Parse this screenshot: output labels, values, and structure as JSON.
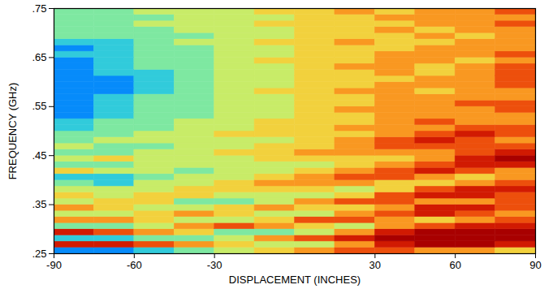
{
  "chart_data": {
    "type": "heatmap",
    "xlabel": "DISPLACEMENT (INCHES)",
    "ylabel": "FREQUENCY (GHz)",
    "xlim": [
      -90,
      90
    ],
    "ylim": [
      0.25,
      0.75
    ],
    "xticks": [
      -90,
      -60,
      -30,
      30,
      60,
      90
    ],
    "yticks": [
      {
        "value": 0.25,
        "label": ".25"
      },
      {
        "value": 0.35,
        "label": ".35"
      },
      {
        "value": 0.45,
        "label": ".45"
      },
      {
        "value": 0.55,
        "label": ".55"
      },
      {
        "value": 0.65,
        "label": ".65"
      },
      {
        "value": 0.75,
        "label": ".75"
      }
    ],
    "x_edges": [
      -90,
      -75,
      -60,
      -45,
      -30,
      -15,
      0,
      15,
      30,
      45,
      60,
      75,
      90
    ],
    "y_edges": [
      0.25,
      0.2625,
      0.275,
      0.2875,
      0.3,
      0.3125,
      0.325,
      0.3375,
      0.35,
      0.3625,
      0.375,
      0.3875,
      0.4,
      0.4125,
      0.425,
      0.4375,
      0.45,
      0.4625,
      0.475,
      0.4875,
      0.5,
      0.5125,
      0.525,
      0.5375,
      0.55,
      0.5625,
      0.575,
      0.5875,
      0.6,
      0.6125,
      0.625,
      0.6375,
      0.65,
      0.6625,
      0.675,
      0.6875,
      0.7,
      0.7125,
      0.725,
      0.7375,
      0.75
    ],
    "color_range": [
      0,
      9
    ],
    "cells": [
      [
        1,
        1,
        2,
        3,
        4,
        5,
        6,
        7,
        7,
        6,
        6,
        5
      ],
      [
        8,
        8,
        7,
        6,
        5,
        4,
        4,
        6,
        8,
        9,
        9,
        8
      ],
      [
        2,
        2,
        3,
        3,
        4,
        6,
        7,
        8,
        9,
        9,
        9,
        9
      ],
      [
        8,
        7,
        6,
        5,
        3,
        3,
        4,
        6,
        8,
        9,
        9,
        9
      ],
      [
        3,
        3,
        4,
        6,
        7,
        6,
        5,
        4,
        6,
        7,
        8,
        8
      ],
      [
        6,
        6,
        5,
        4,
        4,
        5,
        7,
        7,
        6,
        5,
        6,
        7
      ],
      [
        4,
        4,
        5,
        6,
        5,
        4,
        4,
        6,
        7,
        8,
        7,
        6
      ],
      [
        6,
        5,
        4,
        4,
        5,
        6,
        5,
        5,
        6,
        8,
        8,
        7
      ],
      [
        4,
        5,
        5,
        3,
        3,
        4,
        6,
        7,
        7,
        6,
        6,
        7
      ],
      [
        5,
        4,
        5,
        5,
        4,
        4,
        4,
        5,
        7,
        8,
        8,
        7
      ],
      [
        4,
        4,
        4,
        5,
        5,
        5,
        5,
        4,
        5,
        7,
        8,
        8
      ],
      [
        3,
        2,
        4,
        4,
        5,
        6,
        6,
        6,
        5,
        5,
        6,
        7
      ],
      [
        2,
        2,
        3,
        4,
        4,
        5,
        6,
        7,
        7,
        6,
        5,
        6
      ],
      [
        5,
        4,
        4,
        3,
        4,
        4,
        5,
        6,
        7,
        8,
        7,
        6
      ],
      [
        3,
        3,
        4,
        4,
        4,
        4,
        4,
        5,
        6,
        7,
        8,
        8
      ],
      [
        4,
        5,
        4,
        4,
        4,
        5,
        5,
        5,
        5,
        6,
        8,
        9
      ],
      [
        3,
        3,
        4,
        4,
        5,
        5,
        6,
        6,
        6,
        6,
        7,
        8
      ],
      [
        4,
        3,
        3,
        4,
        4,
        5,
        5,
        6,
        7,
        7,
        7,
        7
      ],
      [
        3,
        4,
        4,
        4,
        4,
        4,
        5,
        6,
        7,
        8,
        7,
        6
      ],
      [
        3,
        3,
        4,
        4,
        5,
        5,
        5,
        5,
        6,
        7,
        8,
        7
      ],
      [
        2,
        3,
        3,
        4,
        4,
        5,
        5,
        6,
        6,
        6,
        7,
        7
      ],
      [
        2,
        3,
        3,
        4,
        4,
        5,
        5,
        5,
        6,
        7,
        6,
        6
      ],
      [
        1,
        2,
        3,
        3,
        4,
        4,
        5,
        5,
        6,
        6,
        6,
        6
      ],
      [
        1,
        2,
        3,
        3,
        4,
        4,
        5,
        6,
        6,
        6,
        6,
        7
      ],
      [
        1,
        2,
        3,
        3,
        4,
        4,
        5,
        5,
        6,
        6,
        7,
        7
      ],
      [
        1,
        2,
        3,
        3,
        4,
        4,
        5,
        5,
        6,
        6,
        6,
        6
      ],
      [
        1,
        1,
        2,
        3,
        4,
        5,
        5,
        6,
        6,
        5,
        6,
        6
      ],
      [
        1,
        1,
        2,
        3,
        4,
        4,
        5,
        5,
        6,
        6,
        6,
        7
      ],
      [
        1,
        1,
        2,
        3,
        4,
        4,
        5,
        5,
        5,
        6,
        6,
        7
      ],
      [
        1,
        2,
        2,
        3,
        4,
        4,
        5,
        5,
        6,
        5,
        6,
        7
      ],
      [
        1,
        2,
        3,
        3,
        4,
        4,
        5,
        6,
        6,
        5,
        6,
        7
      ],
      [
        1,
        2,
        3,
        3,
        4,
        5,
        5,
        5,
        6,
        6,
        5,
        6
      ],
      [
        2,
        2,
        3,
        3,
        4,
        4,
        5,
        5,
        6,
        6,
        6,
        7
      ],
      [
        1,
        2,
        3,
        3,
        4,
        4,
        5,
        5,
        5,
        6,
        6,
        6
      ],
      [
        2,
        2,
        3,
        4,
        4,
        5,
        5,
        6,
        5,
        5,
        6,
        6
      ],
      [
        3,
        3,
        3,
        3,
        4,
        4,
        5,
        5,
        5,
        6,
        5,
        6
      ],
      [
        3,
        3,
        3,
        4,
        4,
        4,
        5,
        5,
        6,
        5,
        6,
        6
      ],
      [
        3,
        3,
        4,
        4,
        4,
        5,
        5,
        5,
        5,
        6,
        6,
        7
      ],
      [
        3,
        3,
        3,
        4,
        4,
        4,
        5,
        5,
        6,
        6,
        6,
        6
      ],
      [
        3,
        3,
        4,
        4,
        4,
        5,
        5,
        6,
        5,
        6,
        6,
        7
      ]
    ]
  }
}
